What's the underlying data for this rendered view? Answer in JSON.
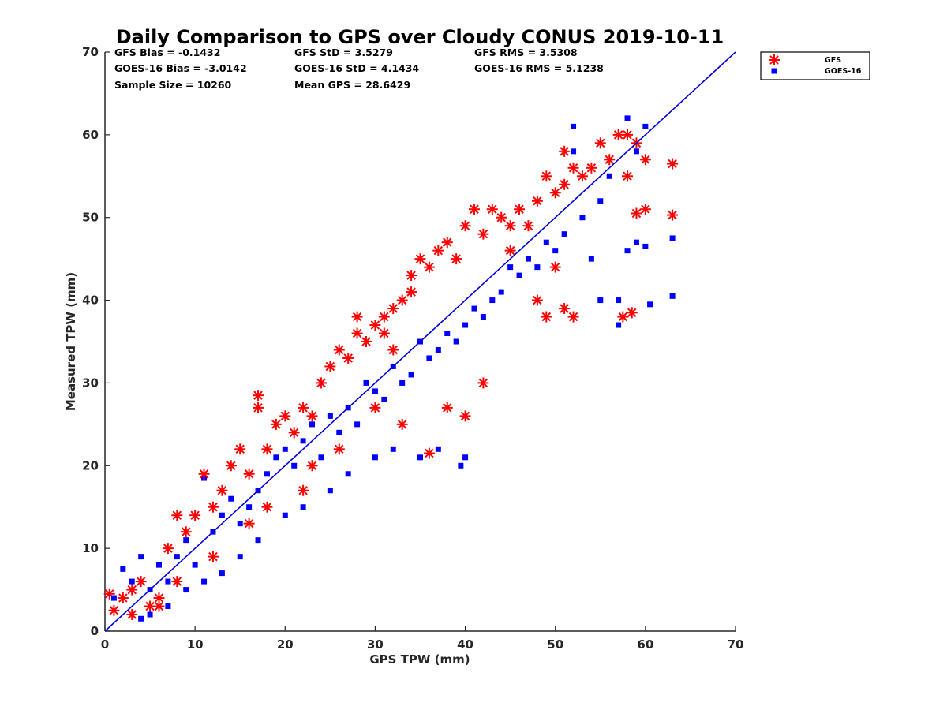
{
  "chart_data": {
    "type": "scatter",
    "title": "Daily Comparison to GPS over Cloudy CONUS 2019-10-11",
    "xlabel": "GPS TPW (mm)",
    "ylabel": "Measured TPW (mm)",
    "xlim": [
      0,
      70
    ],
    "ylim": [
      0,
      70
    ],
    "xticks": [
      0,
      10,
      20,
      30,
      40,
      50,
      60,
      70
    ],
    "yticks": [
      0,
      10,
      20,
      30,
      40,
      50,
      60,
      70
    ],
    "grid": false,
    "legend_position": "outside-top-right",
    "reference_line": {
      "name": "1:1 line",
      "from": [
        0,
        0
      ],
      "to": [
        70,
        70
      ],
      "color": "#0000dd"
    },
    "stats": [
      "GFS Bias = -0.1432",
      "GFS StD = 3.5279",
      "GFS RMS = 3.5308",
      "GOES-16 Bias = -3.0142",
      "GOES-16 StD = 4.1434",
      "GOES-16 RMS = 5.1238",
      "Sample Size = 10260",
      "Mean GPS = 28.6429"
    ],
    "series": [
      {
        "name": "GFS",
        "marker": "asterisk",
        "color": "#ff0000",
        "bias": -0.1432,
        "std": 3.5279,
        "points": [
          [
            0.5,
            4.5
          ],
          [
            1,
            2.5
          ],
          [
            2,
            4
          ],
          [
            3,
            5
          ],
          [
            4,
            6
          ],
          [
            5,
            3
          ],
          [
            6,
            4
          ],
          [
            7,
            10
          ],
          [
            8,
            14
          ],
          [
            9,
            12
          ],
          [
            10,
            14
          ],
          [
            11,
            19
          ],
          [
            12,
            15
          ],
          [
            13,
            17
          ],
          [
            14,
            20
          ],
          [
            15,
            22
          ],
          [
            16,
            19
          ],
          [
            17,
            28.5
          ],
          [
            17,
            27
          ],
          [
            18,
            22
          ],
          [
            19,
            25
          ],
          [
            20,
            26
          ],
          [
            21,
            24
          ],
          [
            22,
            27
          ],
          [
            23,
            26
          ],
          [
            24,
            30
          ],
          [
            25,
            32
          ],
          [
            26,
            34
          ],
          [
            27,
            33
          ],
          [
            28,
            36
          ],
          [
            28,
            38
          ],
          [
            29,
            35
          ],
          [
            30,
            37
          ],
          [
            31,
            38
          ],
          [
            31,
            36
          ],
          [
            32,
            39
          ],
          [
            32,
            34
          ],
          [
            33,
            40
          ],
          [
            34,
            41
          ],
          [
            34,
            43
          ],
          [
            35,
            45
          ],
          [
            36,
            44
          ],
          [
            36,
            21.5
          ],
          [
            37,
            46
          ],
          [
            38,
            47
          ],
          [
            39,
            45
          ],
          [
            40,
            49
          ],
          [
            41,
            51
          ],
          [
            42,
            48
          ],
          [
            43,
            51
          ],
          [
            44,
            50
          ],
          [
            45,
            49
          ],
          [
            46,
            51
          ],
          [
            47,
            49
          ],
          [
            48,
            52
          ],
          [
            49,
            55
          ],
          [
            50,
            53
          ],
          [
            51,
            54
          ],
          [
            51,
            58
          ],
          [
            52,
            56
          ],
          [
            53,
            55
          ],
          [
            54,
            56
          ],
          [
            55,
            59
          ],
          [
            56,
            57
          ],
          [
            57,
            60
          ],
          [
            58,
            55
          ],
          [
            58,
            60
          ],
          [
            59,
            59
          ],
          [
            59,
            50.5
          ],
          [
            60,
            51
          ],
          [
            60,
            57
          ],
          [
            63,
            56.5
          ],
          [
            63,
            50.3
          ],
          [
            57.5,
            38
          ],
          [
            58.5,
            38.5
          ],
          [
            52,
            38
          ],
          [
            48,
            40
          ],
          [
            49,
            38
          ],
          [
            51,
            39
          ],
          [
            50,
            44
          ],
          [
            45,
            46
          ],
          [
            42,
            30
          ],
          [
            38,
            27
          ],
          [
            40,
            26
          ],
          [
            33,
            25
          ],
          [
            30,
            27
          ],
          [
            26,
            22
          ],
          [
            23,
            20
          ],
          [
            22,
            17
          ],
          [
            18,
            15
          ],
          [
            16,
            13
          ],
          [
            12,
            9
          ],
          [
            8,
            6
          ],
          [
            6,
            3
          ],
          [
            3,
            2
          ]
        ]
      },
      {
        "name": "GOES-16",
        "marker": "square",
        "color": "#0000ff",
        "bias": -3.0142,
        "std": 4.1434,
        "points": [
          [
            1,
            4
          ],
          [
            2,
            7.5
          ],
          [
            3,
            6
          ],
          [
            4,
            9
          ],
          [
            5,
            5
          ],
          [
            6,
            8
          ],
          [
            7,
            6
          ],
          [
            8,
            9
          ],
          [
            9,
            11
          ],
          [
            10,
            8
          ],
          [
            11,
            18.5
          ],
          [
            12,
            12
          ],
          [
            13,
            14
          ],
          [
            14,
            16
          ],
          [
            15,
            13
          ],
          [
            16,
            15
          ],
          [
            17,
            17
          ],
          [
            18,
            19
          ],
          [
            19,
            21
          ],
          [
            20,
            22
          ],
          [
            21,
            20
          ],
          [
            22,
            23
          ],
          [
            23,
            25
          ],
          [
            24,
            21
          ],
          [
            25,
            26
          ],
          [
            26,
            24
          ],
          [
            27,
            27
          ],
          [
            28,
            25
          ],
          [
            29,
            30
          ],
          [
            30,
            29
          ],
          [
            31,
            28
          ],
          [
            32,
            32
          ],
          [
            33,
            30
          ],
          [
            34,
            31
          ],
          [
            35,
            35
          ],
          [
            36,
            33
          ],
          [
            37,
            34
          ],
          [
            38,
            36
          ],
          [
            39,
            35
          ],
          [
            40,
            37
          ],
          [
            41,
            39
          ],
          [
            42,
            38
          ],
          [
            43,
            40
          ],
          [
            44,
            41
          ],
          [
            45,
            44
          ],
          [
            46,
            43
          ],
          [
            47,
            45
          ],
          [
            48,
            44
          ],
          [
            49,
            47
          ],
          [
            50,
            46
          ],
          [
            51,
            48
          ],
          [
            52,
            58
          ],
          [
            52,
            61
          ],
          [
            53,
            50
          ],
          [
            54,
            45
          ],
          [
            55,
            52
          ],
          [
            55,
            40
          ],
          [
            56,
            55
          ],
          [
            57,
            40
          ],
          [
            57,
            37
          ],
          [
            58,
            62
          ],
          [
            58,
            46
          ],
          [
            59,
            58
          ],
          [
            59,
            47
          ],
          [
            60,
            61
          ],
          [
            60,
            46.5
          ],
          [
            60.5,
            39.5
          ],
          [
            63,
            47.5
          ],
          [
            63,
            40.5
          ],
          [
            39.5,
            20
          ],
          [
            40,
            21
          ],
          [
            37,
            22
          ],
          [
            35,
            21
          ],
          [
            32,
            22
          ],
          [
            30,
            21
          ],
          [
            27,
            19
          ],
          [
            25,
            17
          ],
          [
            22,
            15
          ],
          [
            20,
            14
          ],
          [
            17,
            11
          ],
          [
            15,
            9
          ],
          [
            13,
            7
          ],
          [
            11,
            6
          ],
          [
            9,
            5
          ],
          [
            7,
            3
          ],
          [
            5,
            2
          ],
          [
            4,
            1.5
          ]
        ]
      }
    ]
  }
}
